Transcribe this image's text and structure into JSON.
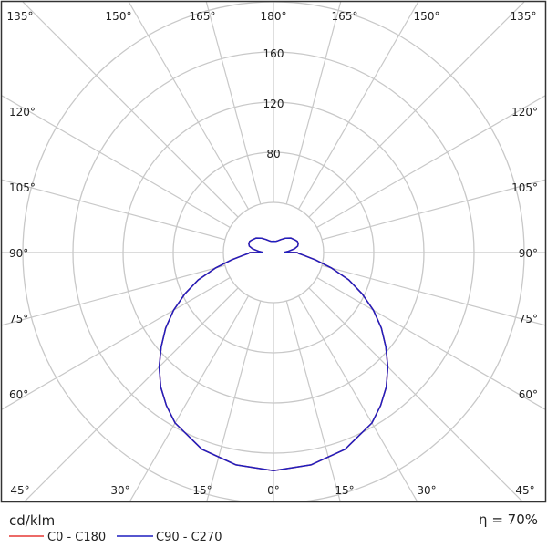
{
  "chart_data": {
    "type": "polar",
    "unit_label": "cd/klm",
    "efficiency_label": "η = 70%",
    "radial_ticks": [
      40,
      80,
      120,
      160,
      200
    ],
    "radial_tick_labels": [
      "80",
      "120",
      "160"
    ],
    "rlim": [
      0,
      200
    ],
    "angle_step": 15,
    "angle_labels": {
      "top": [
        "135°",
        "150°",
        "165°",
        "180°",
        "165°",
        "150°",
        "135°"
      ],
      "left": [
        "120°",
        "105°",
        "90°",
        "75°",
        "60°"
      ],
      "right": [
        "120°",
        "105°",
        "90°",
        "75°",
        "60°"
      ],
      "bottom": [
        "45°",
        "30°",
        "15°",
        "0°",
        "15°",
        "30°",
        "45°"
      ]
    },
    "grid": true,
    "legend_placement": "bottom-left",
    "angles": [
      0,
      10,
      20,
      30,
      35,
      40,
      45,
      50,
      55,
      60,
      65,
      70,
      75,
      80,
      85,
      88,
      90,
      92,
      95,
      100,
      105,
      110,
      115,
      120,
      130,
      140,
      150,
      160,
      170,
      180
    ],
    "series": [
      {
        "name": "C0 - C180",
        "color": "#e53935",
        "values": [
          174,
          172,
          167,
          157,
          149,
          140,
          129,
          117,
          105,
          92,
          78,
          64,
          48,
          34,
          24,
          20,
          19,
          9,
          12,
          17,
          20,
          21,
          21,
          20,
          18,
          15,
          12,
          10,
          9,
          9
        ]
      },
      {
        "name": "C90 - C270",
        "color": "#1f1fbf",
        "values": [
          174,
          172,
          167,
          157,
          149,
          140,
          129,
          117,
          105,
          92,
          78,
          64,
          48,
          34,
          24,
          20,
          19,
          9,
          12,
          17,
          20,
          21,
          21,
          20,
          18,
          15,
          12,
          10,
          9,
          9
        ]
      }
    ]
  }
}
